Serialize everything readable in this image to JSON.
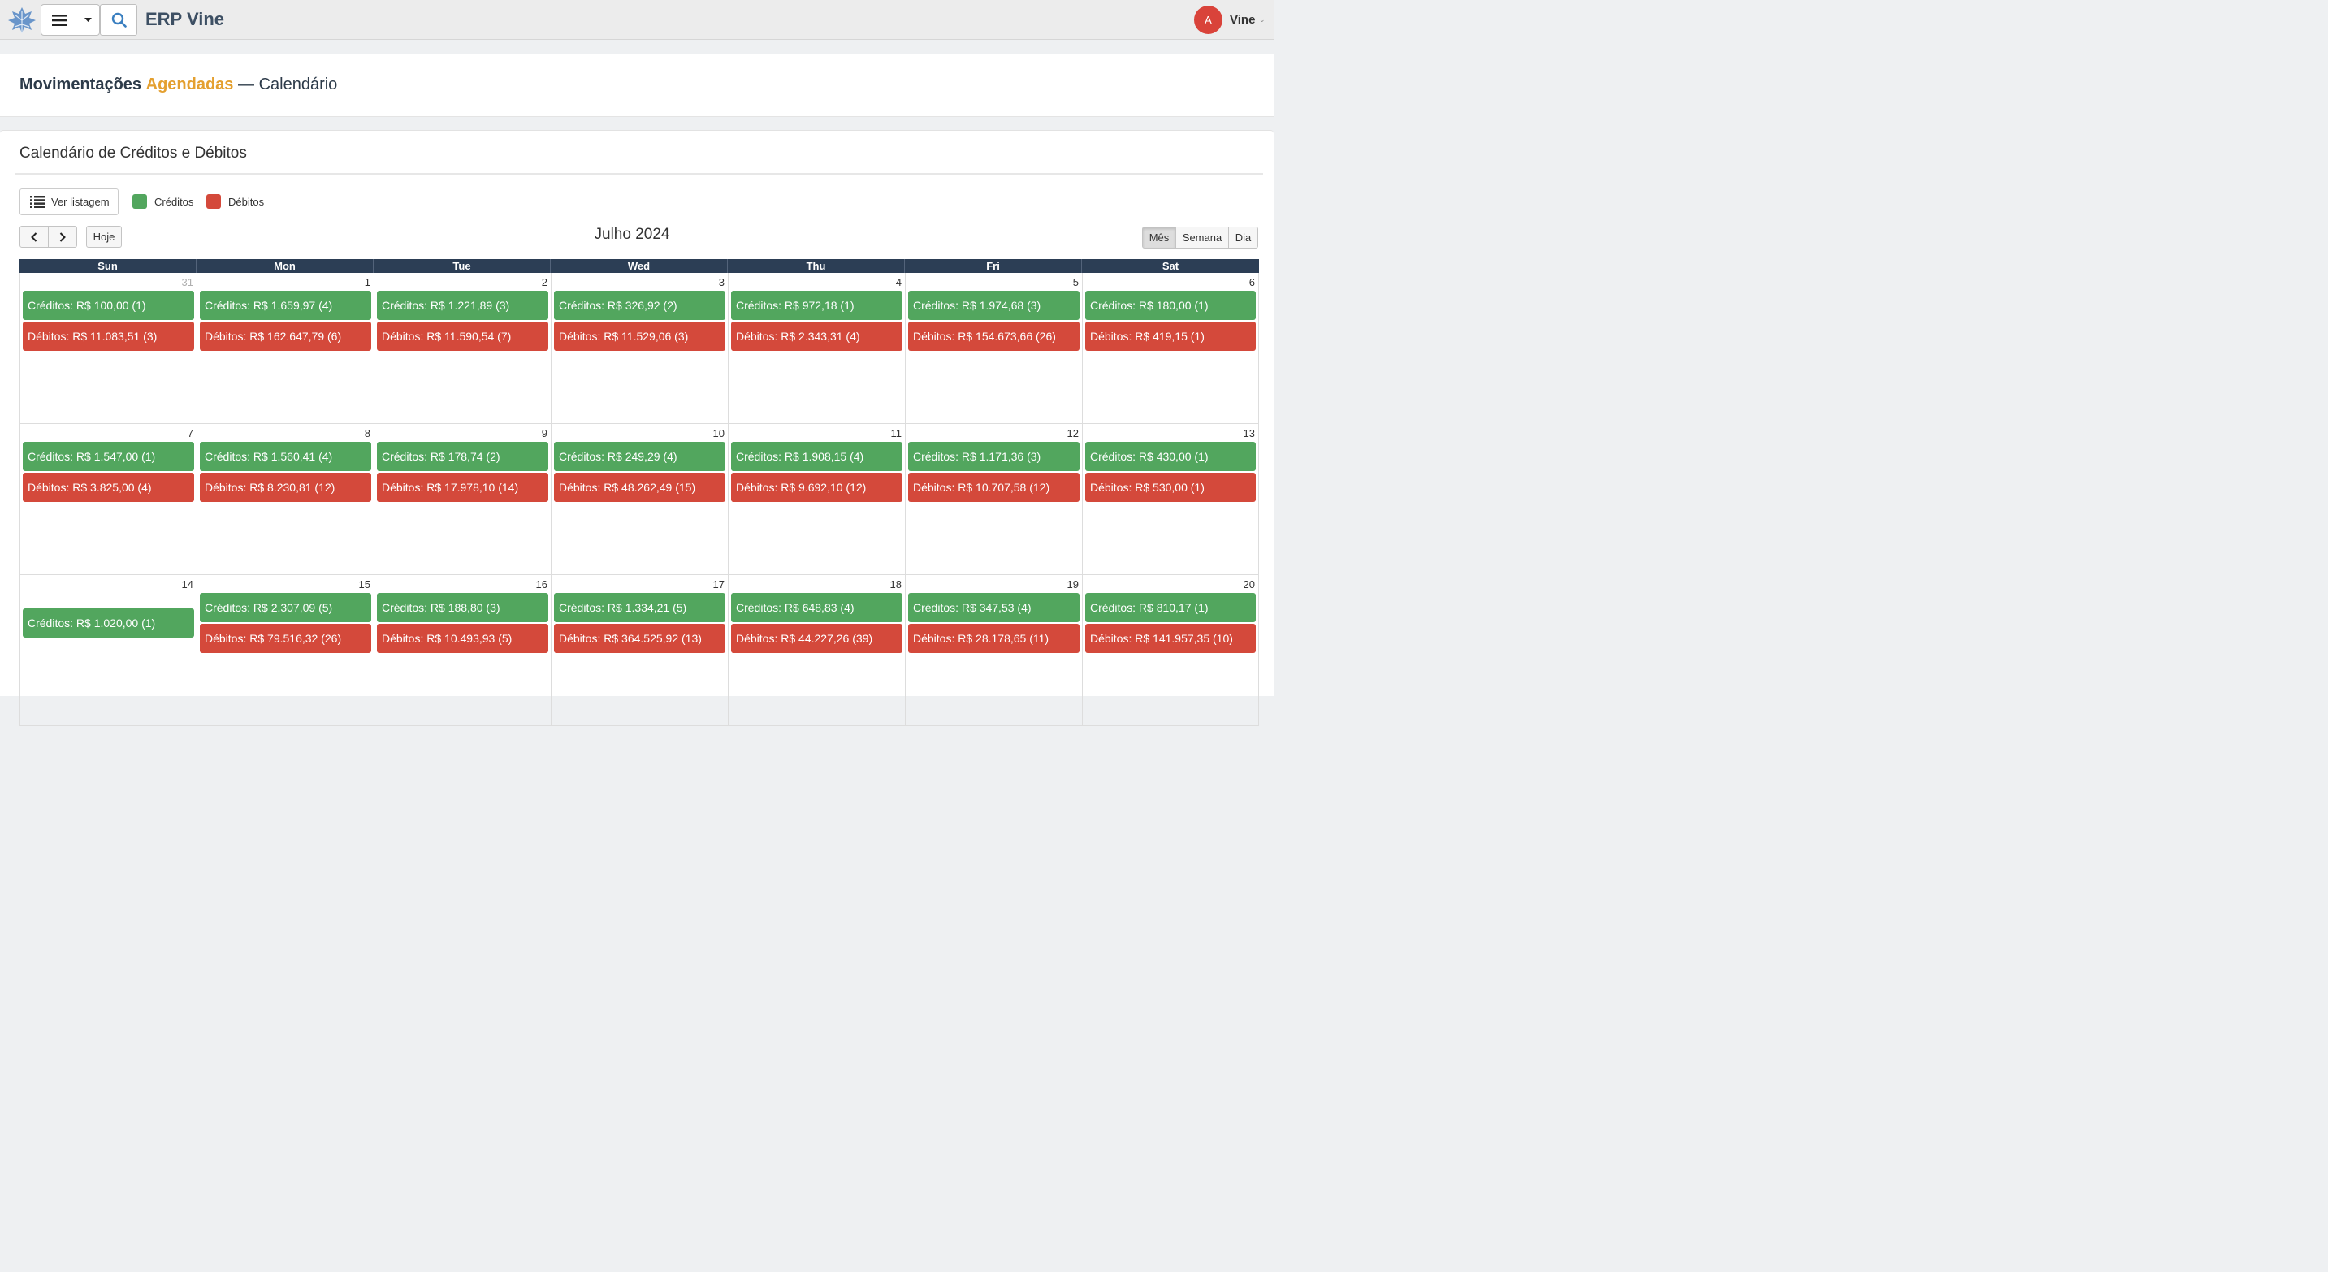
{
  "app": {
    "name": "ERP Vine"
  },
  "user": {
    "avatar_letter": "A",
    "name": "Vine"
  },
  "page": {
    "title_part1": "Movimentações",
    "title_part2": "Agendadas",
    "separator": "—",
    "title_part3": "Calendário"
  },
  "panel": {
    "title": "Calendário de Créditos e Débitos"
  },
  "toolbar": {
    "list_label": "Ver listagem",
    "today_label": "Hoje",
    "month_label": "Mês",
    "week_label": "Semana",
    "day_label": "Dia"
  },
  "legend": {
    "credits": "Créditos",
    "debits": "Débitos",
    "credit_color": "#52a65e",
    "debit_color": "#d4493b"
  },
  "calendar": {
    "title": "Julho 2024",
    "weekdays": [
      "Sun",
      "Mon",
      "Tue",
      "Wed",
      "Thu",
      "Fri",
      "Sat"
    ],
    "weeks": [
      [
        {
          "day": "31",
          "other": true,
          "credit": "Créditos: R$ 100,00 (1)",
          "debit": "Débitos: R$ 11.083,51 (3)"
        },
        {
          "day": "1",
          "credit": "Créditos: R$ 1.659,97 (4)",
          "debit": "Débitos: R$ 162.647,79 (6)"
        },
        {
          "day": "2",
          "credit": "Créditos: R$ 1.221,89 (3)",
          "debit": "Débitos: R$ 11.590,54 (7)"
        },
        {
          "day": "3",
          "credit": "Créditos: R$ 326,92 (2)",
          "debit": "Débitos: R$ 11.529,06 (3)"
        },
        {
          "day": "4",
          "credit": "Créditos: R$ 972,18 (1)",
          "debit": "Débitos: R$ 2.343,31 (4)"
        },
        {
          "day": "5",
          "credit": "Créditos: R$ 1.974,68 (3)",
          "debit": "Débitos: R$ 154.673,66 (26)"
        },
        {
          "day": "6",
          "credit": "Créditos: R$ 180,00 (1)",
          "debit": "Débitos: R$ 419,15 (1)"
        }
      ],
      [
        {
          "day": "7",
          "credit": "Créditos: R$ 1.547,00 (1)",
          "debit": "Débitos: R$ 3.825,00 (4)"
        },
        {
          "day": "8",
          "credit": "Créditos: R$ 1.560,41 (4)",
          "debit": "Débitos: R$ 8.230,81 (12)"
        },
        {
          "day": "9",
          "credit": "Créditos: R$ 178,74 (2)",
          "debit": "Débitos: R$ 17.978,10 (14)"
        },
        {
          "day": "10",
          "credit": "Créditos: R$ 249,29 (4)",
          "debit": "Débitos: R$ 48.262,49 (15)"
        },
        {
          "day": "11",
          "credit": "Créditos: R$ 1.908,15 (4)",
          "debit": "Débitos: R$ 9.692,10 (12)"
        },
        {
          "day": "12",
          "credit": "Créditos: R$ 1.171,36 (3)",
          "debit": "Débitos: R$ 10.707,58 (12)"
        },
        {
          "day": "13",
          "credit": "Créditos: R$ 430,00 (1)",
          "debit": "Débitos: R$ 530,00 (1)"
        }
      ],
      [
        {
          "day": "14",
          "credit": "Créditos: R$ 1.020,00 (1)"
        },
        {
          "day": "15",
          "credit": "Créditos: R$ 2.307,09 (5)",
          "debit": "Débitos: R$ 79.516,32 (26)"
        },
        {
          "day": "16",
          "credit": "Créditos: R$ 188,80 (3)",
          "debit": "Débitos: R$ 10.493,93 (5)"
        },
        {
          "day": "17",
          "credit": "Créditos: R$ 1.334,21 (5)",
          "debit": "Débitos: R$ 364.525,92 (13)"
        },
        {
          "day": "18",
          "credit": "Créditos: R$ 648,83 (4)",
          "debit": "Débitos: R$ 44.227,26 (39)"
        },
        {
          "day": "19",
          "credit": "Créditos: R$ 347,53 (4)",
          "debit": "Débitos: R$ 28.178,65 (11)"
        },
        {
          "day": "20",
          "credit": "Créditos: R$ 810,17 (1)",
          "debit": "Débitos: R$ 141.957,35 (10)"
        }
      ]
    ]
  }
}
